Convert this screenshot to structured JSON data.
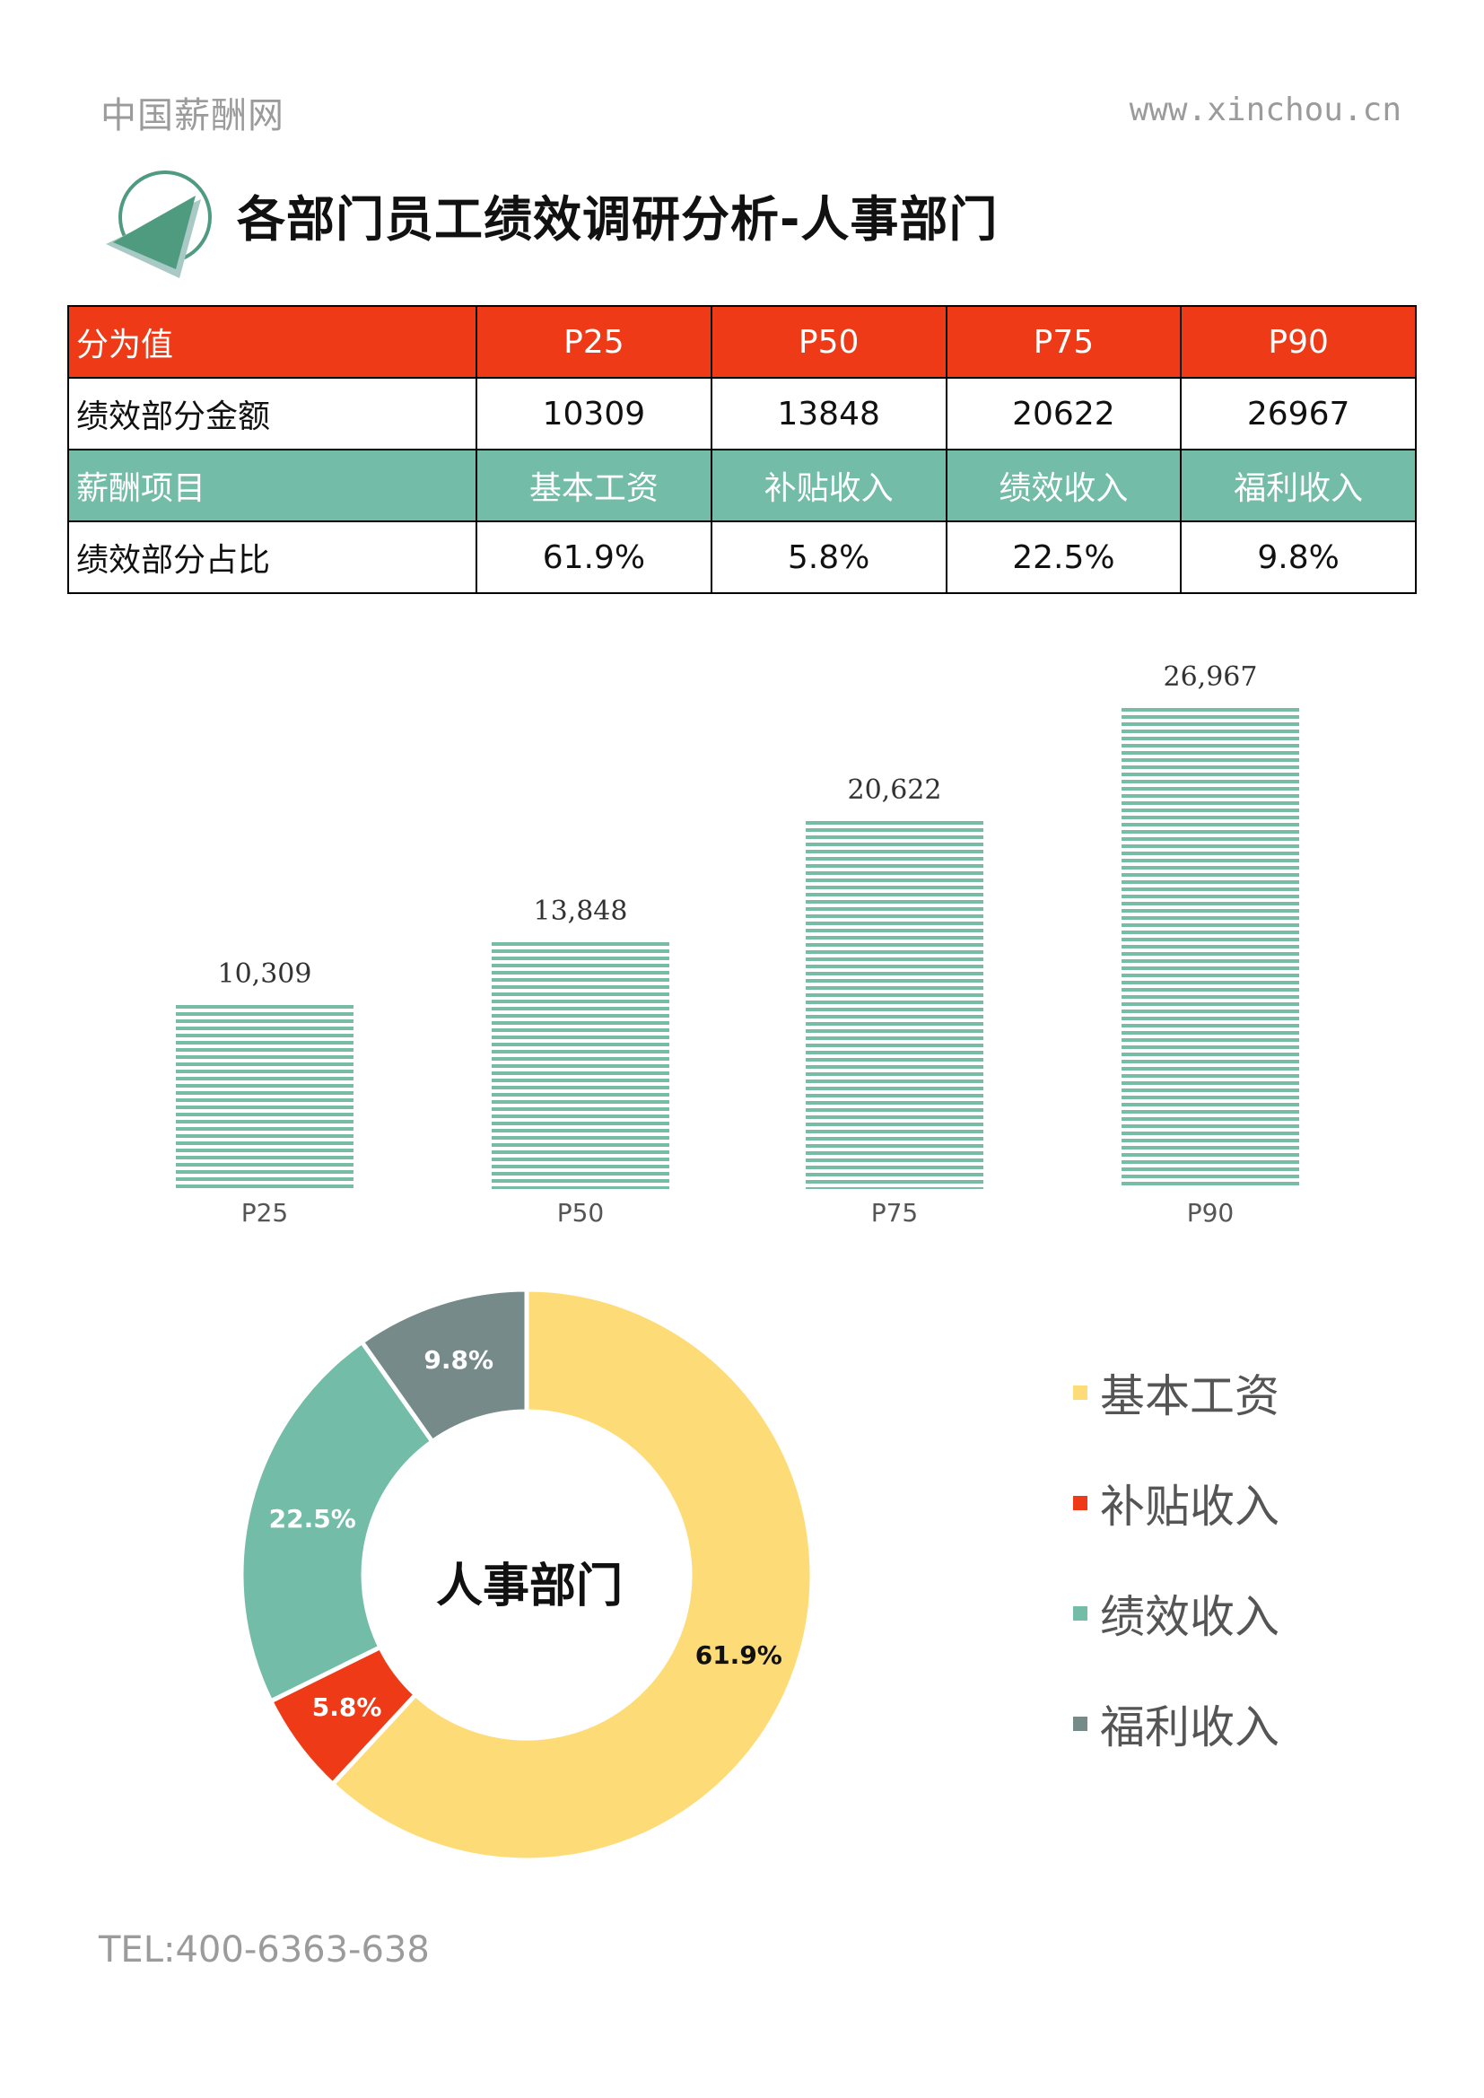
{
  "header": {
    "brand": "中国薪酬网",
    "website": "www.xinchou.cn"
  },
  "title": "各部门员工绩效调研分析-人事部门",
  "table": {
    "rows": [
      {
        "label": "分为值",
        "cells": [
          "P25",
          "P50",
          "P75",
          "P90"
        ],
        "style": "red"
      },
      {
        "label": "绩效部分金额",
        "cells": [
          "10309",
          "13848",
          "20622",
          "26967"
        ],
        "style": "plain"
      },
      {
        "label": "薪酬项目",
        "cells": [
          "基本工资",
          "补贴收入",
          "绩效收入",
          "福利收入"
        ],
        "style": "green"
      },
      {
        "label": "绩效部分占比",
        "cells": [
          "61.9%",
          "5.8%",
          "22.5%",
          "9.8%"
        ],
        "style": "plain"
      }
    ]
  },
  "chart_data": [
    {
      "type": "bar",
      "title": "",
      "categories": [
        "P25",
        "P50",
        "P75",
        "P90"
      ],
      "values": [
        10309,
        13848,
        20622,
        26967
      ],
      "value_labels": [
        "10,309",
        "13,848",
        "20,622",
        "26,967"
      ],
      "xlabel": "",
      "ylabel": "",
      "ylim": [
        0,
        30000
      ],
      "grid": false,
      "bar_color": "#79bca6",
      "bar_pattern": "horizontal-stripes"
    },
    {
      "type": "pie",
      "style": "donut",
      "center_label": "人事部门",
      "categories": [
        "基本工资",
        "补贴收入",
        "绩效收入",
        "福利收入"
      ],
      "values": [
        61.9,
        5.8,
        22.5,
        9.8
      ],
      "value_labels": [
        "61.9%",
        "5.8%",
        "22.5%",
        "9.8%"
      ],
      "colors": [
        "#fddc78",
        "#ee3a16",
        "#73bca7",
        "#778a8a"
      ],
      "legend_position": "right"
    }
  ],
  "legend": [
    {
      "label": "基本工资",
      "color": "#fddc78"
    },
    {
      "label": "补贴收入",
      "color": "#ee3a16"
    },
    {
      "label": "绩效收入",
      "color": "#73bca7"
    },
    {
      "label": "福利收入",
      "color": "#778a8a"
    }
  ],
  "footer": {
    "tel": "TEL:400-6363-638"
  }
}
